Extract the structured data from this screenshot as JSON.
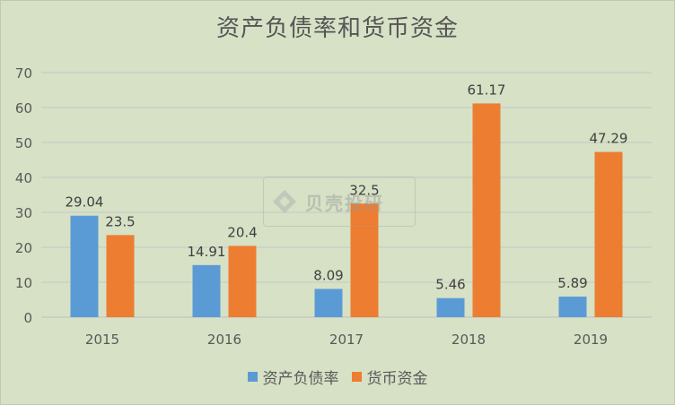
{
  "chart_data": {
    "type": "bar",
    "title": "资产负债率和货币资金",
    "categories": [
      "2015",
      "2016",
      "2017",
      "2018",
      "2019"
    ],
    "series": [
      {
        "name": "资产负债率",
        "color": "#5b9bd5",
        "values": [
          29.04,
          14.91,
          8.09,
          5.46,
          5.89
        ],
        "labels": [
          "29.04",
          "14.91",
          "8.09",
          "5.46",
          "5.89"
        ]
      },
      {
        "name": "货币资金",
        "color": "#ed7d31",
        "values": [
          23.5,
          20.4,
          32.5,
          61.17,
          47.29
        ],
        "labels": [
          "23.5",
          "20.4",
          "32.5",
          "61.17",
          "47.29"
        ]
      }
    ],
    "ylim": [
      0,
      70
    ],
    "yticks": [
      "0",
      "10",
      "20",
      "30",
      "40",
      "50",
      "60",
      "70"
    ],
    "grid": true,
    "legend": "bottom",
    "background": "#d6e1c5"
  },
  "watermark": {
    "text": "贝壳投研"
  }
}
